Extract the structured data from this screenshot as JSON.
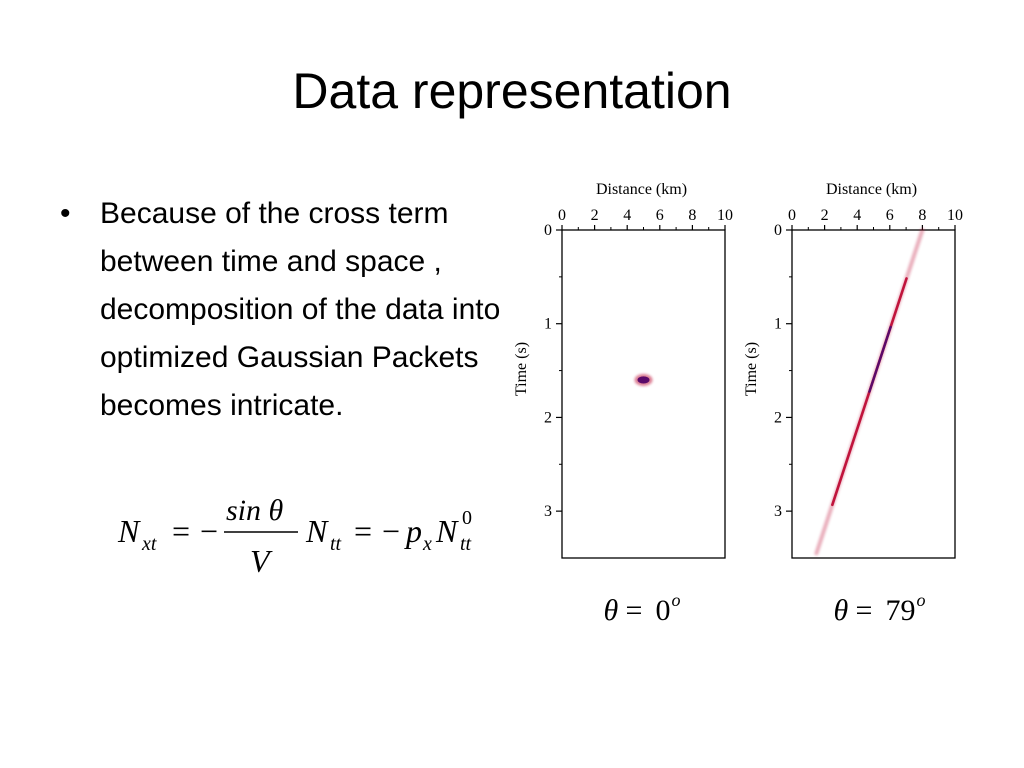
{
  "slide": {
    "title": "Data representation",
    "bullet": "Because of the cross term between time and space , decomposition of the data into optimized Gaussian Packets becomes intricate."
  },
  "equation": {
    "lhs": "N",
    "lhs_sub": "xt",
    "equals": "=",
    "minus": "−",
    "frac_num": "sin θ",
    "frac_den": "V",
    "mid": "N",
    "mid_sub": "tt",
    "equals2": "=",
    "minus2": "−",
    "p": "p",
    "p_sub": "x",
    "end": "N",
    "end_sup": "0",
    "end_sub": "tt"
  },
  "colors": {
    "packet": "#c0143c",
    "packet_core": "#5a0a6a",
    "axis": "#000000"
  },
  "chart_data": [
    {
      "type": "heatmap",
      "xlabel": "Distance (km)",
      "ylabel": "Time (s)",
      "x_ticks": [
        "0",
        "2",
        "4",
        "6",
        "8",
        "10"
      ],
      "y_ticks": [
        "0",
        "1",
        "2",
        "3"
      ],
      "xlim": [
        0,
        10
      ],
      "ylim": [
        0,
        3.5
      ],
      "x_axis_position": "top",
      "packet": {
        "x": 5,
        "t": 1.6
      },
      "caption": "θ = 0°",
      "caption_symbol": "θ",
      "caption_eq": "=",
      "caption_value": "0",
      "caption_sup": "o"
    },
    {
      "type": "heatmap",
      "xlabel": "Distance (km)",
      "ylabel": "Time (s)",
      "x_ticks": [
        "0",
        "2",
        "4",
        "6",
        "8",
        "10"
      ],
      "y_ticks": [
        "0",
        "1",
        "2",
        "3"
      ],
      "xlim": [
        0,
        10
      ],
      "ylim": [
        0,
        3.5
      ],
      "x_axis_position": "top",
      "packet_line": {
        "x_start": 8,
        "t_start": 0,
        "x_end": 1.5,
        "t_end": 3.45
      },
      "caption": "θ = 79°",
      "caption_symbol": "θ",
      "caption_eq": "=",
      "caption_value": "79",
      "caption_sup": "o"
    }
  ]
}
